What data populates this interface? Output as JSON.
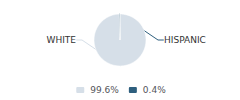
{
  "chart_data": {
    "type": "pie",
    "categories": [
      "WHITE",
      "HISPANIC"
    ],
    "values": [
      99.6,
      0.4
    ],
    "value_labels": [
      "99.6%",
      "0.4%"
    ],
    "colors": [
      "#d6dfe8",
      "#2e5f7e"
    ],
    "legend": "bottom"
  }
}
